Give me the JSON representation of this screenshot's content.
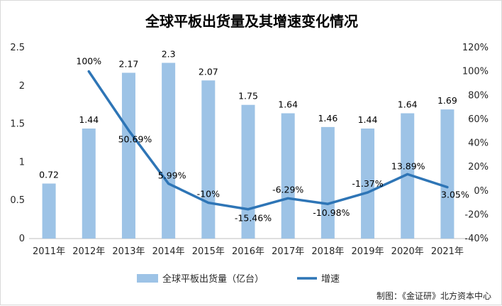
{
  "chart_data": {
    "type": "bar+line",
    "title": "全球平板出货量及其增速变化情况",
    "categories": [
      "2011年",
      "2012年",
      "2013年",
      "2014年",
      "2015年",
      "2016年",
      "2017年",
      "2018年",
      "2019年",
      "2020年",
      "2021年"
    ],
    "series": [
      {
        "name": "全球平板出货量（亿台）",
        "type": "bar",
        "axis": "left",
        "color": "#9dc3e6",
        "values": [
          0.72,
          1.44,
          2.17,
          2.3,
          2.07,
          1.75,
          1.64,
          1.46,
          1.44,
          1.64,
          1.69
        ],
        "labels": [
          "0.72",
          "1.44",
          "2.17",
          "2.3",
          "2.07",
          "1.75",
          "1.64",
          "1.46",
          "1.44",
          "1.64",
          "1.69"
        ]
      },
      {
        "name": "增速",
        "type": "line",
        "axis": "right",
        "color": "#2e75b6",
        "values": [
          null,
          100,
          50.69,
          5.99,
          -10,
          -15.46,
          -6.29,
          -10.98,
          -1.37,
          13.89,
          3.05
        ],
        "labels": [
          "",
          "100%",
          "50.69%",
          "5.99%",
          "-10%",
          "-15.46%",
          "-6.29%",
          "-10.98%",
          "-1.37%",
          "13.89%",
          "3.05%"
        ]
      }
    ],
    "y_left": {
      "range": [
        0,
        2.5
      ],
      "ticks": [
        "0",
        "0.5",
        "1",
        "1.5",
        "2",
        "2.5"
      ]
    },
    "y_right": {
      "range": [
        -40,
        120
      ],
      "ticks": [
        "-40%",
        "-20%",
        "0%",
        "20%",
        "40%",
        "60%",
        "80%",
        "100%",
        "120%"
      ]
    },
    "grid": false,
    "legend": "bottom-center",
    "source": "制图：《金证研》北方资本中心"
  }
}
